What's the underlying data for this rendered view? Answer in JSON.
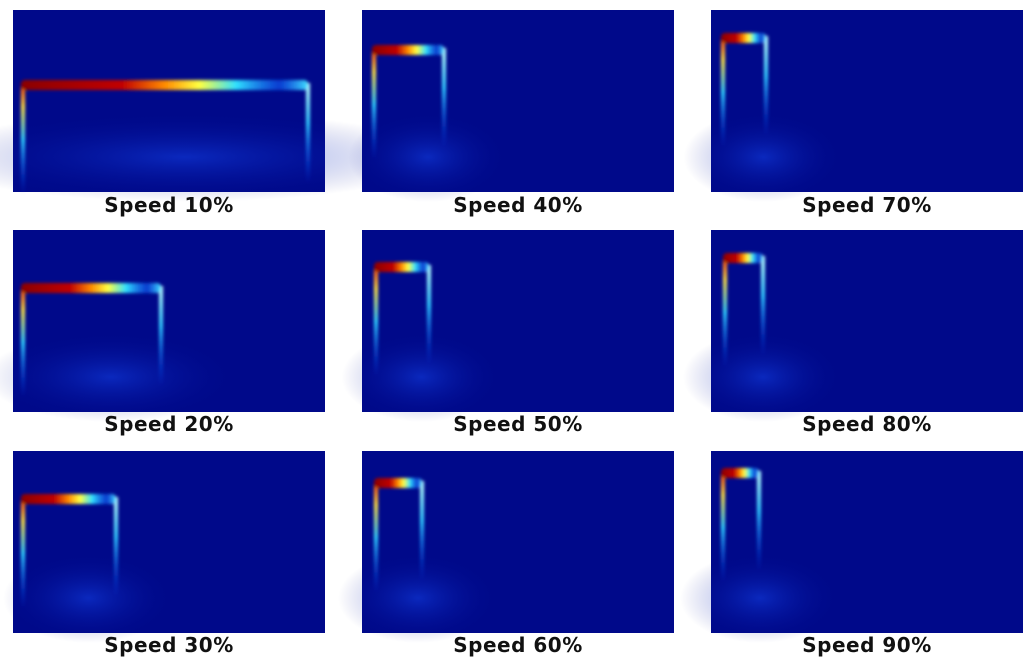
{
  "panels": [
    {
      "caption": "Speed 10%"
    },
    {
      "caption": "Speed 40%"
    },
    {
      "caption": "Speed 70%"
    },
    {
      "caption": "Speed 20%"
    },
    {
      "caption": "Speed 50%"
    },
    {
      "caption": "Speed 80%"
    },
    {
      "caption": "Speed 30%"
    },
    {
      "caption": "Speed 60%"
    },
    {
      "caption": "Speed 90%"
    }
  ]
}
